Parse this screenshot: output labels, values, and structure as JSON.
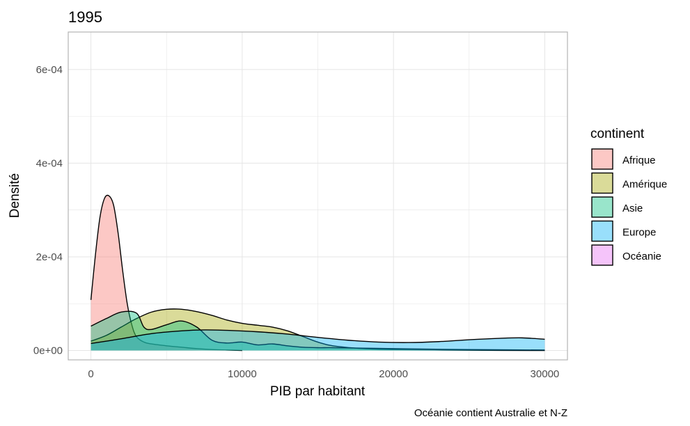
{
  "chart_data": {
    "type": "area",
    "title": "1995",
    "xlabel": "PIB par habitant",
    "ylabel": "Densité",
    "caption": "Océanie contient Australie et N-Z",
    "xlim": [
      -1500,
      31500
    ],
    "ylim": [
      -2e-05,
      0.00068
    ],
    "x_ticks": [
      0,
      10000,
      20000,
      30000
    ],
    "x_tick_labels": [
      "0",
      "10000",
      "20000",
      "30000"
    ],
    "y_ticks": [
      0,
      0.0002,
      0.0004,
      0.0006
    ],
    "y_tick_labels": [
      "0e+00",
      "2e-04",
      "4e-04",
      "6e-04"
    ],
    "grid": true,
    "legend": {
      "title": "continent",
      "position": "right"
    },
    "series": [
      {
        "name": "Afrique",
        "color": "#F8766D",
        "x": [
          0,
          300,
          600,
          900,
          1200,
          1500,
          1800,
          2100,
          2400,
          2700,
          3000,
          3500,
          4000,
          5000,
          6000,
          7000,
          8000,
          9000,
          10000
        ],
        "y": [
          0.000108,
          0.000205,
          0.000285,
          0.000325,
          0.00033,
          0.00031,
          0.00025,
          0.00017,
          0.0001,
          5.5e-05,
          3e-05,
          1.8e-05,
          1.4e-05,
          1e-05,
          7e-06,
          4e-06,
          2e-06,
          1e-06,
          0.0
        ]
      },
      {
        "name": "Amérique",
        "color": "#A3A500",
        "x": [
          0,
          1000,
          2000,
          3000,
          4000,
          5000,
          6000,
          7000,
          8000,
          9000,
          10000,
          11000,
          12000,
          13000,
          14000,
          15000,
          16000,
          18000,
          20000,
          25000,
          30000
        ],
        "y": [
          2e-05,
          3.2e-05,
          5e-05,
          6.8e-05,
          8.2e-05,
          8.8e-05,
          8.8e-05,
          8.3e-05,
          7.5e-05,
          6.5e-05,
          5.8e-05,
          5.4e-05,
          5e-05,
          4.2e-05,
          3e-05,
          1.8e-05,
          1e-05,
          4e-06,
          2e-06,
          5e-07,
          0.0
        ]
      },
      {
        "name": "Asie",
        "color": "#00BF7D",
        "x": [
          0,
          1000,
          2000,
          3000,
          3500,
          4000,
          5000,
          6000,
          7000,
          8000,
          9000,
          10000,
          11000,
          12000,
          13000,
          14000,
          15000,
          16000,
          18000,
          20000,
          25000,
          30000
        ],
        "y": [
          5.2e-05,
          6.8e-05,
          8.2e-05,
          8e-05,
          5e-05,
          4.5e-05,
          5.5e-05,
          6.3e-05,
          5e-05,
          2.2e-05,
          1.6e-05,
          1.8e-05,
          1.2e-05,
          1.4e-05,
          1e-05,
          7e-06,
          6e-06,
          6e-06,
          5e-06,
          4e-06,
          2e-06,
          1e-06
        ]
      },
      {
        "name": "Europe",
        "color": "#00B0F6",
        "x": [
          0,
          2000,
          4000,
          6000,
          7500,
          9000,
          11000,
          13000,
          15000,
          17000,
          19000,
          21000,
          23000,
          25000,
          27000,
          28500,
          30000
        ],
        "y": [
          1.5e-05,
          2.5e-05,
          3.6e-05,
          4.2e-05,
          4.4e-05,
          4.3e-05,
          4e-05,
          3.5e-05,
          2.8e-05,
          2.2e-05,
          1.8e-05,
          1.7e-05,
          1.9e-05,
          2.3e-05,
          2.6e-05,
          2.7e-05,
          2.4e-05
        ]
      },
      {
        "name": "Océanie",
        "color": "#E76BF3",
        "x": [],
        "y": []
      }
    ]
  }
}
